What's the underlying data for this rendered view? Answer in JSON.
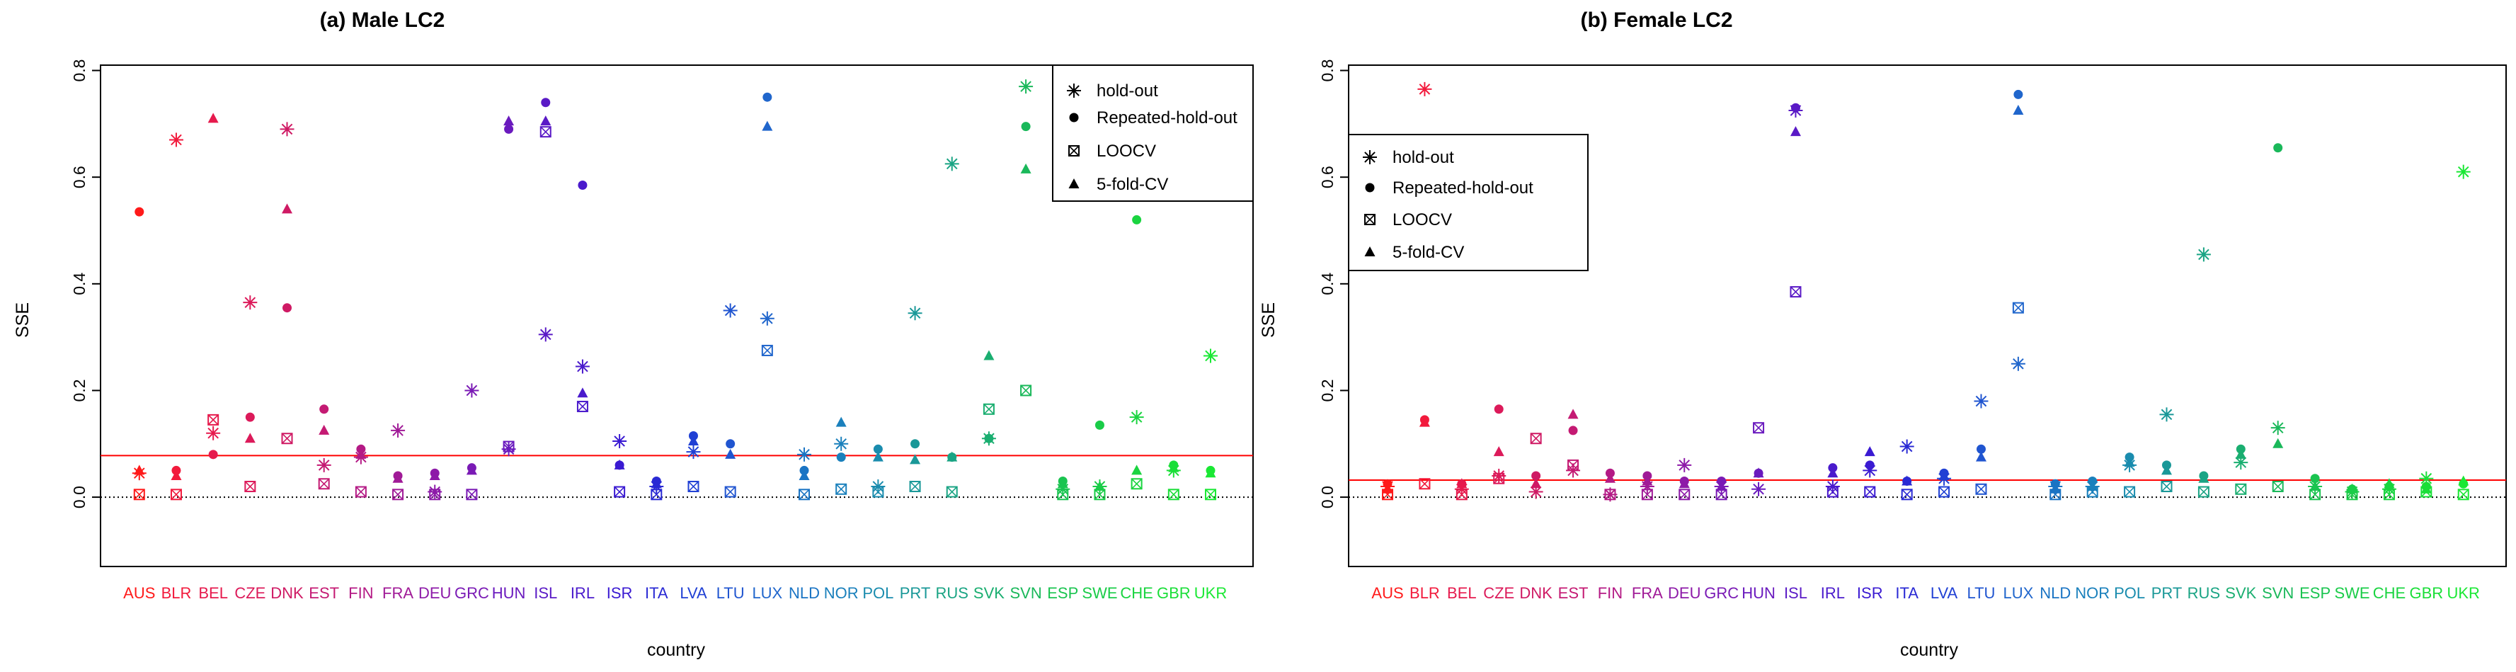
{
  "colors": {
    "hline": "#ff0000",
    "zero_line": "#000000",
    "axis": "#000000"
  },
  "chart_data": [
    {
      "type": "scatter",
      "title": "(a) Male LC2",
      "xlabel": "country",
      "ylabel": "SSE",
      "ylim": [
        -0.13,
        0.81
      ],
      "yticks": [
        0.0,
        0.2,
        0.4,
        0.6,
        0.8
      ],
      "yticklabels": [
        "0.0",
        "0.2",
        "0.4",
        "0.6",
        "0.8"
      ],
      "hline": 0.078,
      "zero_line": 0.0,
      "legend_position": "top-right",
      "legend": [
        {
          "label": "hold-out",
          "marker": "asterisk"
        },
        {
          "label": "Repeated-hold-out",
          "marker": "dot"
        },
        {
          "label": "LOOCV",
          "marker": "boxx"
        },
        {
          "label": "5-fold-CV",
          "marker": "triangle"
        }
      ],
      "categories": [
        "AUS",
        "BLR",
        "BEL",
        "CZE",
        "DNK",
        "EST",
        "FIN",
        "FRA",
        "DEU",
        "GRC",
        "HUN",
        "ISL",
        "IRL",
        "ISR",
        "ITA",
        "LVA",
        "LTU",
        "LUX",
        "NLD",
        "NOR",
        "POL",
        "PRT",
        "RUS",
        "SVK",
        "SVN",
        "ESP",
        "SWE",
        "CHE",
        "GBR",
        "UKR"
      ],
      "category_colors": [
        "#ff1a1a",
        "#f21a3c",
        "#e61a4d",
        "#dc1a5a",
        "#cf1a64",
        "#c41a73",
        "#b41a85",
        "#a01a97",
        "#8d1aa8",
        "#7a1ab5",
        "#6a1abe",
        "#5a1ac6",
        "#4a1acc",
        "#3a1ad2",
        "#2a2ad4",
        "#2040d4",
        "#2055d0",
        "#2066cc",
        "#1a74c4",
        "#1a80bc",
        "#1a8cae",
        "#1a9898",
        "#1aa484",
        "#1aae70",
        "#1ab85a",
        "#1ac450",
        "#1acc48",
        "#1ad440",
        "#1ade38",
        "#1ae834"
      ],
      "series": [
        {
          "name": "hold-out",
          "marker": "asterisk",
          "values": [
            0.045,
            0.67,
            0.12,
            0.365,
            0.69,
            0.06,
            0.075,
            0.125,
            0.01,
            0.2,
            0.09,
            0.305,
            0.245,
            0.105,
            0.02,
            0.085,
            0.35,
            0.335,
            0.08,
            0.1,
            0.02,
            0.345,
            0.625,
            0.11,
            0.77,
            0.015,
            0.02,
            0.15,
            0.05,
            0.265
          ]
        },
        {
          "name": "Repeated-hold-out",
          "marker": "dot",
          "values": [
            0.535,
            0.05,
            0.08,
            0.15,
            0.355,
            0.165,
            0.09,
            0.04,
            0.045,
            0.055,
            0.69,
            0.74,
            0.585,
            0.06,
            0.03,
            0.115,
            0.1,
            0.75,
            0.05,
            0.075,
            0.09,
            0.1,
            0.075,
            0.11,
            0.695,
            0.03,
            0.135,
            0.52,
            0.06,
            0.05
          ]
        },
        {
          "name": "LOOCV",
          "marker": "boxx",
          "values": [
            0.005,
            0.005,
            0.145,
            0.02,
            0.11,
            0.025,
            0.01,
            0.005,
            0.005,
            0.005,
            0.095,
            0.685,
            0.17,
            0.01,
            0.005,
            0.02,
            0.01,
            0.275,
            0.005,
            0.015,
            0.01,
            0.02,
            0.01,
            0.165,
            0.2,
            0.005,
            0.005,
            0.025,
            0.005,
            0.005
          ]
        },
        {
          "name": "5-fold-CV",
          "marker": "triangle",
          "values": [
            0.05,
            0.04,
            0.71,
            0.11,
            0.54,
            0.125,
            0.08,
            0.035,
            0.04,
            0.05,
            0.705,
            0.705,
            0.195,
            0.06,
            0.025,
            0.105,
            0.08,
            0.695,
            0.04,
            0.14,
            0.075,
            0.07,
            0.075,
            0.265,
            0.615,
            0.025,
            0.02,
            0.05,
            0.055,
            0.045
          ]
        }
      ]
    },
    {
      "type": "scatter",
      "title": "(b) Female LC2",
      "xlabel": "country",
      "ylabel": "SSE",
      "ylim": [
        -0.13,
        0.81
      ],
      "yticks": [
        0.0,
        0.2,
        0.4,
        0.6,
        0.8
      ],
      "yticklabels": [
        "0.0",
        "0.2",
        "0.4",
        "0.6",
        "0.8"
      ],
      "hline": 0.032,
      "zero_line": 0.0,
      "legend_position": "top-left",
      "legend": [
        {
          "label": "hold-out",
          "marker": "asterisk"
        },
        {
          "label": "Repeated-hold-out",
          "marker": "dot"
        },
        {
          "label": "LOOCV",
          "marker": "boxx"
        },
        {
          "label": "5-fold-CV",
          "marker": "triangle"
        }
      ],
      "categories": [
        "AUS",
        "BLR",
        "BEL",
        "CZE",
        "DNK",
        "EST",
        "FIN",
        "FRA",
        "DEU",
        "GRC",
        "HUN",
        "ISL",
        "IRL",
        "ISR",
        "ITA",
        "LVA",
        "LTU",
        "LUX",
        "NLD",
        "NOR",
        "POL",
        "PRT",
        "RUS",
        "SVK",
        "SVN",
        "ESP",
        "SWE",
        "CHE",
        "GBR",
        "UKR"
      ],
      "category_colors": [
        "#ff1a1a",
        "#f21a3c",
        "#e61a4d",
        "#dc1a5a",
        "#cf1a64",
        "#c41a73",
        "#b41a85",
        "#a01a97",
        "#8d1aa8",
        "#7a1ab5",
        "#6a1abe",
        "#5a1ac6",
        "#4a1acc",
        "#3a1ad2",
        "#2a2ad4",
        "#2040d4",
        "#2055d0",
        "#2066cc",
        "#1a74c4",
        "#1a80bc",
        "#1a8cae",
        "#1a9898",
        "#1aa484",
        "#1aae70",
        "#1ab85a",
        "#1ac450",
        "#1acc48",
        "#1ad440",
        "#1ade38",
        "#1ae834"
      ],
      "series": [
        {
          "name": "hold-out",
          "marker": "asterisk",
          "values": [
            0.02,
            0.765,
            0.015,
            0.04,
            0.01,
            0.05,
            0.005,
            0.02,
            0.06,
            0.02,
            0.015,
            0.725,
            0.02,
            0.05,
            0.095,
            0.035,
            0.18,
            0.25,
            0.02,
            0.02,
            0.06,
            0.155,
            0.455,
            0.065,
            0.13,
            0.02,
            0.01,
            0.015,
            0.035,
            0.61
          ]
        },
        {
          "name": "Repeated-hold-out",
          "marker": "dot",
          "values": [
            0.025,
            0.145,
            0.025,
            0.165,
            0.04,
            0.125,
            0.045,
            0.04,
            0.03,
            0.03,
            0.045,
            0.73,
            0.055,
            0.06,
            0.03,
            0.045,
            0.09,
            0.755,
            0.025,
            0.03,
            0.075,
            0.06,
            0.04,
            0.09,
            0.655,
            0.035,
            0.015,
            0.02,
            0.02,
            0.025
          ]
        },
        {
          "name": "LOOCV",
          "marker": "boxx",
          "values": [
            0.005,
            0.025,
            0.005,
            0.035,
            0.11,
            0.06,
            0.005,
            0.005,
            0.005,
            0.005,
            0.13,
            0.385,
            0.01,
            0.01,
            0.005,
            0.01,
            0.015,
            0.355,
            0.005,
            0.01,
            0.01,
            0.02,
            0.01,
            0.015,
            0.02,
            0.005,
            0.005,
            0.005,
            0.01,
            0.005
          ]
        },
        {
          "name": "5-fold-CV",
          "marker": "triangle",
          "values": [
            0.015,
            0.14,
            0.025,
            0.085,
            0.025,
            0.155,
            0.035,
            0.03,
            0.025,
            0.02,
            0.045,
            0.685,
            0.045,
            0.085,
            0.03,
            0.04,
            0.075,
            0.725,
            0.015,
            0.02,
            0.065,
            0.05,
            0.035,
            0.08,
            0.1,
            0.02,
            0.015,
            0.025,
            0.015,
            0.03
          ]
        }
      ]
    }
  ]
}
